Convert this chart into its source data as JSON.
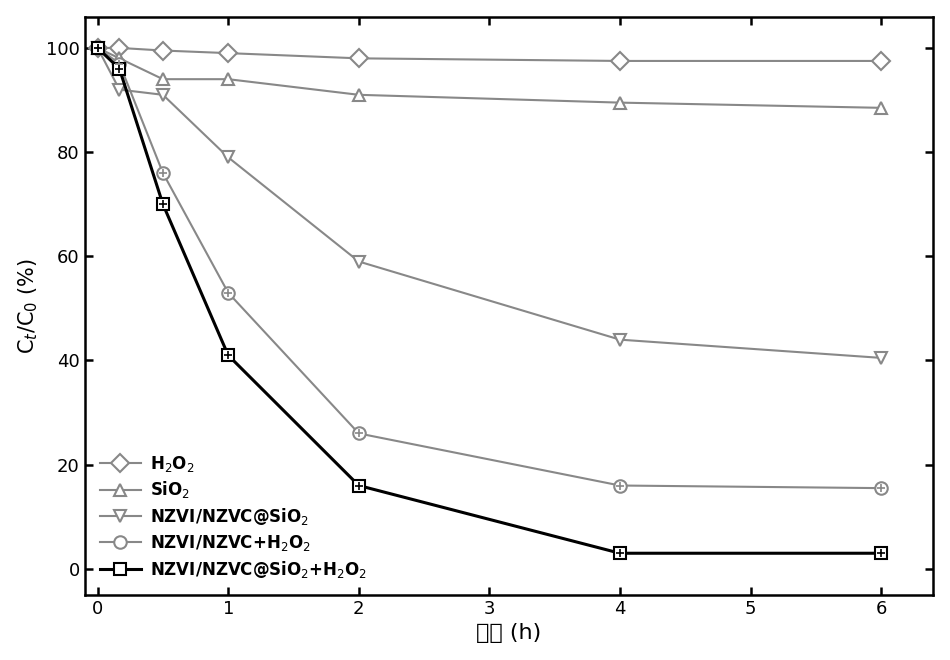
{
  "series": {
    "H2O2": {
      "x": [
        0,
        0.167,
        0.5,
        1,
        2,
        4,
        6
      ],
      "y": [
        100,
        100,
        99.5,
        99,
        98,
        97.5,
        97.5
      ],
      "color": "#888888",
      "marker": "D",
      "marker_size": 9,
      "linewidth": 1.5,
      "label": "H$_2$O$_2$",
      "zorder": 3
    },
    "SiO2": {
      "x": [
        0,
        0.167,
        0.5,
        1,
        2,
        4,
        6
      ],
      "y": [
        100,
        98,
        94,
        94,
        91,
        89.5,
        88.5
      ],
      "color": "#888888",
      "marker": "^",
      "marker_size": 9,
      "linewidth": 1.5,
      "label": "SiO$_2$",
      "zorder": 3
    },
    "NZVI_SiO2": {
      "x": [
        0,
        0.167,
        0.5,
        1,
        2,
        4,
        6
      ],
      "y": [
        100,
        92,
        91,
        79,
        59,
        44,
        40.5
      ],
      "color": "#888888",
      "marker": "v",
      "marker_size": 9,
      "linewidth": 1.5,
      "label": "NZVI/NZVC@SiO$_2$",
      "zorder": 3
    },
    "NZVI_H2O2": {
      "x": [
        0,
        0.167,
        0.5,
        1,
        2,
        4,
        6
      ],
      "y": [
        100,
        97,
        76,
        53,
        26,
        16,
        15.5
      ],
      "color": "#888888",
      "marker": "o",
      "marker_size": 9,
      "linewidth": 1.5,
      "label": "NZVI/NZVC+H$_2$O$_2$",
      "zorder": 3
    },
    "NZVI_SiO2_H2O2": {
      "x": [
        0,
        0.167,
        0.5,
        1,
        2,
        4,
        6
      ],
      "y": [
        100,
        96,
        70,
        41,
        16,
        3,
        3
      ],
      "color": "#000000",
      "marker": "s",
      "marker_size": 9,
      "linewidth": 2.2,
      "label": "NZVI/NZVC@SiO$_2$+H$_2$O$_2$",
      "zorder": 4
    }
  },
  "xlabel": "时间 (h)",
  "ylabel": "C$_t$/C$_0$ (%)",
  "xlim": [
    -0.1,
    6.4
  ],
  "ylim": [
    -5,
    106
  ],
  "xticks": [
    0,
    1,
    2,
    3,
    4,
    5,
    6
  ],
  "yticks": [
    0,
    20,
    40,
    60,
    80,
    100
  ],
  "figsize": [
    9.5,
    6.6
  ],
  "dpi": 100,
  "background_color": "#ffffff"
}
